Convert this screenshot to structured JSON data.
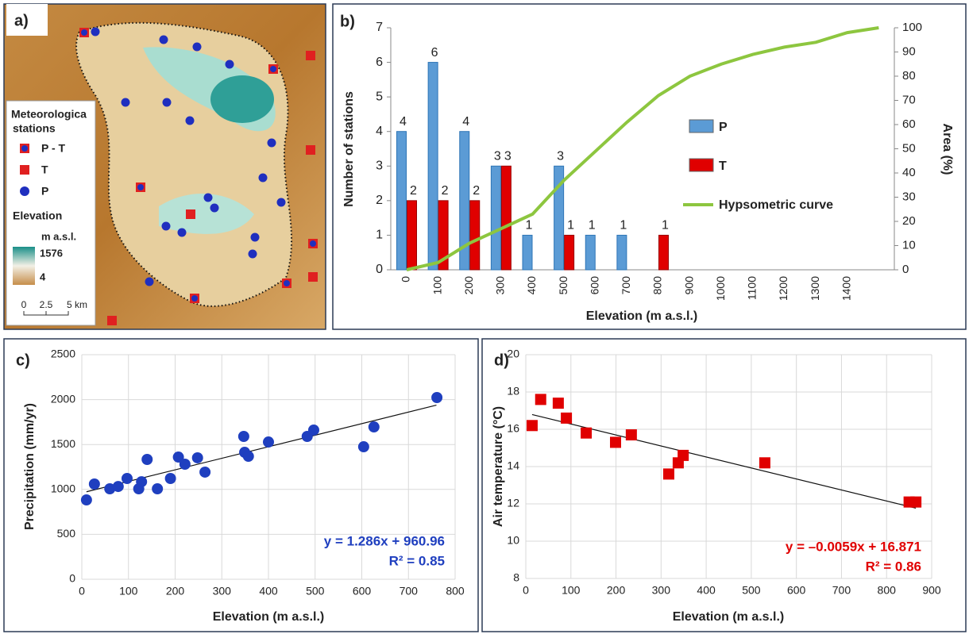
{
  "map": {
    "label": "a)",
    "legend_title": [
      "Meteorologica",
      "stations"
    ],
    "legend_items": [
      "P - T",
      "T",
      "P"
    ],
    "elevation_title": "Elevation",
    "unit": "m a.s.l.",
    "max": "1576",
    "min": "4",
    "scale": [
      "0",
      "2.5",
      "5 km"
    ]
  },
  "chart_data": [
    {
      "type": "bar",
      "label": "b)",
      "categories": [
        "0",
        "100",
        "200",
        "300",
        "400",
        "500",
        "600",
        "700",
        "800",
        "900",
        "1000",
        "1100",
        "1200",
        "1300",
        "1400",
        null
      ],
      "series": [
        {
          "name": "P",
          "color": "#5b9bd5",
          "values": [
            4,
            6,
            4,
            3,
            1,
            3,
            1,
            1,
            null,
            null,
            null,
            null,
            null,
            null,
            null,
            null
          ]
        },
        {
          "name": "T",
          "color": "#e00000",
          "values": [
            2,
            2,
            2,
            3,
            null,
            1,
            null,
            null,
            1,
            null,
            null,
            null,
            null,
            null,
            null,
            null
          ]
        },
        {
          "name": "Hypsometric curve",
          "color": "#8dc63f",
          "type": "line",
          "axis": "y2",
          "values": [
            0,
            3,
            11,
            17,
            23,
            37,
            49,
            61,
            72,
            80,
            85,
            89,
            92,
            94,
            98,
            100
          ]
        }
      ],
      "ylim": [
        0,
        7
      ],
      "yticks": [
        0,
        1,
        2,
        3,
        4,
        5,
        6,
        7
      ],
      "y2lim": [
        0,
        100
      ],
      "y2ticks": [
        0,
        10,
        20,
        30,
        40,
        50,
        60,
        70,
        80,
        90,
        100
      ],
      "xlabel": "Elevation (m a.s.l.)",
      "ylabel": "Number of stations",
      "y2label": "Area (%)",
      "grid": false
    },
    {
      "type": "scatter",
      "label": "c)",
      "marker": "circle",
      "color": "#1f3fbf",
      "x": [
        10,
        27,
        60,
        78,
        97,
        122,
        128,
        140,
        162,
        190,
        207,
        221,
        248,
        264,
        347,
        349,
        357,
        400,
        483,
        497,
        604,
        626,
        761
      ],
      "values": [
        883,
        1060,
        1007,
        1033,
        1122,
        1007,
        1086,
        1334,
        1007,
        1122,
        1360,
        1281,
        1352,
        1193,
        1590,
        1413,
        1369,
        1528,
        1590,
        1661,
        1475,
        1696,
        2023
      ],
      "trendline": {
        "x": [
          10,
          760
        ],
        "values": [
          973.8,
          1938.3
        ]
      },
      "annotations": [
        "y = 1.286x + 960.96",
        "R² = 0.85"
      ],
      "xlim": [
        0,
        800
      ],
      "xticks": [
        0,
        100,
        200,
        300,
        400,
        500,
        600,
        700,
        800
      ],
      "ylim": [
        0,
        2500
      ],
      "yticks": [
        0,
        500,
        1000,
        1500,
        2000,
        2500
      ],
      "xlabel": "Elevation (m a.s.l.)",
      "ylabel": "Precipitation (mm/yr)",
      "grid": true
    },
    {
      "type": "scatter",
      "label": "d)",
      "marker": "square",
      "color": "#e00000",
      "x": [
        14,
        33,
        72,
        90,
        134,
        199,
        234,
        317,
        338,
        349,
        530,
        850,
        865
      ],
      "values": [
        16.2,
        17.6,
        17.4,
        16.6,
        15.8,
        15.3,
        15.7,
        13.6,
        14.2,
        14.6,
        14.2,
        12.1,
        12.1
      ],
      "trendline": {
        "x": [
          14,
          865
        ],
        "values": [
          16.79,
          11.77
        ]
      },
      "annotations": [
        "y = –0.0059x + 16.871",
        "R² = 0.86"
      ],
      "xlim": [
        0,
        900
      ],
      "xticks": [
        0,
        100,
        200,
        300,
        400,
        500,
        600,
        700,
        800,
        900
      ],
      "ylim": [
        8,
        20
      ],
      "yticks": [
        8,
        10,
        12,
        14,
        16,
        18,
        20
      ],
      "xlabel": "Elevation (m a.s.l.)",
      "ylabel": "Air temperature (°C)",
      "grid": true
    }
  ]
}
